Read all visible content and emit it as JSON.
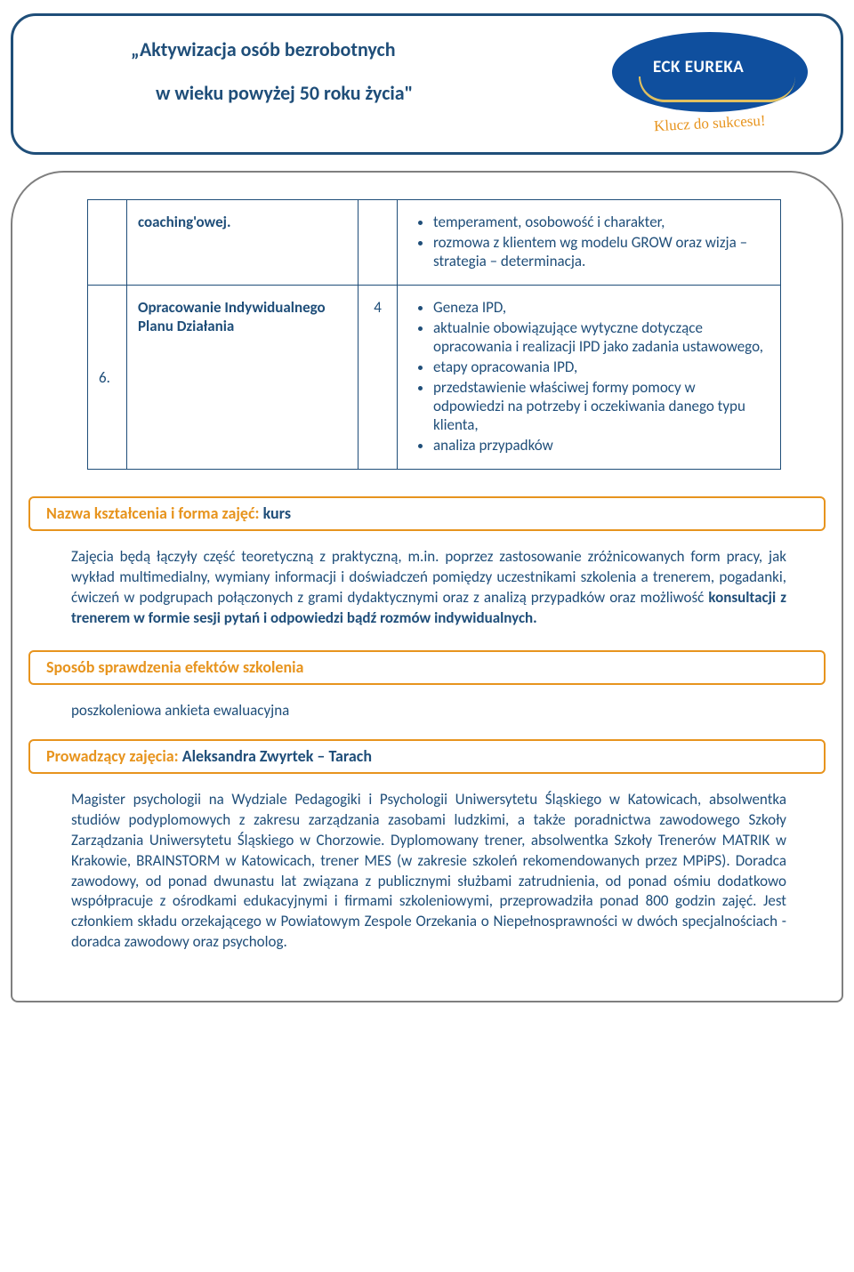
{
  "header": {
    "title_line1": "„Aktywizacja osób bezrobotnych",
    "title_line2": "w wieku powyżej 50 roku życia\"",
    "brand": "ECK EUREKA",
    "tagline": "Klucz do sukcesu!"
  },
  "table": {
    "row1": {
      "label": "coaching'owej.",
      "bullets": [
        "temperament, osobowość i charakter,",
        "rozmowa z klientem wg modelu GROW oraz wizja – strategia – determinacja."
      ]
    },
    "row2": {
      "num": "6.",
      "label": "Opracowanie Indywidualnego Planu Działania",
      "hours": "4",
      "bullets": [
        "Geneza IPD,",
        "aktualnie obowiązujące wytyczne dotyczące opracowania i realizacji IPD jako zadania ustawowego,",
        "etapy opracowania IPD,",
        "przedstawienie właściwej formy pomocy w odpowiedzi na potrzeby i oczekiwania danego typu klienta,",
        "analiza przypadków"
      ]
    }
  },
  "sections": {
    "form": {
      "label": "Nazwa kształcenia i forma zajęć: ",
      "value": "kurs"
    },
    "form_body_plain": "Zajęcia będą łączyły część teoretyczną z praktyczną, m.in. poprzez zastosowanie zróżnicowanych form pracy, jak wykład multimedialny, wymiany informacji i doświadczeń pomiędzy uczestnikami szkolenia a trenerem, pogadanki, ćwiczeń w podgrupach połączonych z grami dydaktycznymi oraz z analizą przypadków oraz możliwość ",
    "form_body_bold": "konsultacji z trenerem w formie sesji pytań i odpowiedzi bądź rozmów indywidualnych.",
    "verify": {
      "label": "Sposób sprawdzenia efektów szkolenia"
    },
    "verify_body": "poszkoleniowa ankieta ewaluacyjna",
    "trainer": {
      "label": "Prowadzący zajęcia: ",
      "value": "Aleksandra Zwyrtek – Tarach"
    },
    "trainer_body": "Magister psychologii na Wydziale Pedagogiki i Psychologii Uniwersytetu Śląskiego w Katowicach, absolwentka studiów podyplomowych z zakresu zarządzania zasobami ludzkimi, a także poradnictwa zawodowego Szkoły Zarządzania Uniwersytetu Śląskiego w Chorzowie. Dyplomowany trener, absolwentka Szkoły Trenerów MATRIK w Krakowie, BRAINSTORM w Katowicach, trener MES (w zakresie szkoleń rekomendowanych przez MPiPS). Doradca zawodowy, od ponad dwunastu lat związana z publicznymi służbami zatrudnienia, od ponad ośmiu dodatkowo współpracuje z ośrodkami edukacyjnymi i firmami szkoleniowymi, przeprowadziła ponad 800 godzin zajęć. Jest członkiem składu orzekającego w Powiatowym Zespole Orzekania o Niepełnosprawności w dwóch specjalnościach - doradca zawodowy oraz psycholog."
  }
}
